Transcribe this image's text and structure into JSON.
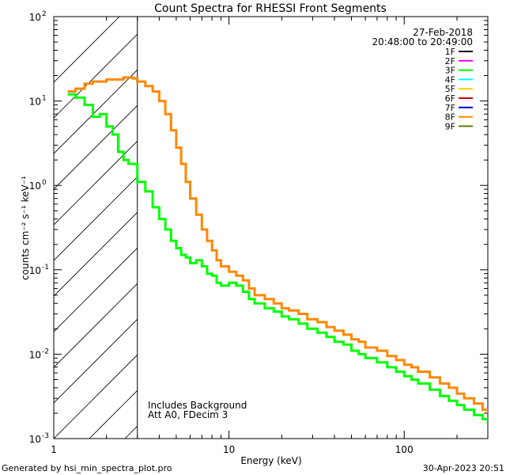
{
  "chart_data": {
    "type": "line",
    "title": "Count Spectra for RHESSI Front Segments",
    "xlabel": "Energy (keV)",
    "ylabel": "counts cm⁻² s⁻¹ keV⁻¹",
    "x_scale": "log",
    "y_scale": "log",
    "xlim": [
      1,
      300
    ],
    "ylim": [
      0.001,
      100
    ],
    "x_ticks": [
      {
        "value": 1,
        "label": "1"
      },
      {
        "value": 10,
        "label": "10"
      },
      {
        "value": 100,
        "label": "100"
      }
    ],
    "y_ticks": [
      {
        "value": 0.001,
        "base": "10",
        "exp": "-3"
      },
      {
        "value": 0.01,
        "base": "10",
        "exp": "-2"
      },
      {
        "value": 0.1,
        "base": "10",
        "exp": "-1"
      },
      {
        "value": 1,
        "base": "10",
        "exp": "0"
      },
      {
        "value": 10,
        "base": "10",
        "exp": "1"
      },
      {
        "value": 100,
        "base": "10",
        "exp": "2"
      }
    ],
    "date": "27-Feb-2018",
    "time_range": "20:48:00 to 20:49:00",
    "shaded_region_below_kev": 3,
    "annotations": [
      "Includes Background",
      "Att A0, FDecim 3"
    ],
    "legend": [
      {
        "label": "1F",
        "color": "#000000"
      },
      {
        "label": "2F",
        "color": "#ff00ff"
      },
      {
        "label": "3F",
        "color": "#00ff00"
      },
      {
        "label": "4F",
        "color": "#00ffff"
      },
      {
        "label": "5F",
        "color": "#ffcc00"
      },
      {
        "label": "6F",
        "color": "#cc0000"
      },
      {
        "label": "7F",
        "color": "#0000cc"
      },
      {
        "label": "8F",
        "color": "#ff8800"
      },
      {
        "label": "9F",
        "color": "#667700"
      }
    ],
    "series": [
      {
        "name": "3F",
        "color": "#00ff00",
        "points": [
          [
            1.2,
            12
          ],
          [
            1.33,
            11
          ],
          [
            1.5,
            9
          ],
          [
            1.67,
            6.5
          ],
          [
            1.83,
            7
          ],
          [
            2.0,
            5
          ],
          [
            2.17,
            4
          ],
          [
            2.33,
            2.5
          ],
          [
            2.5,
            2
          ],
          [
            2.67,
            1.8
          ],
          [
            2.83,
            1.8
          ],
          [
            3.0,
            1.1
          ],
          [
            3.33,
            0.85
          ],
          [
            3.67,
            0.55
          ],
          [
            4.0,
            0.4
          ],
          [
            4.33,
            0.3
          ],
          [
            4.67,
            0.22
          ],
          [
            5.0,
            0.18
          ],
          [
            5.33,
            0.15
          ],
          [
            5.67,
            0.14
          ],
          [
            6.0,
            0.12
          ],
          [
            6.5,
            0.13
          ],
          [
            7.0,
            0.11
          ],
          [
            7.5,
            0.09
          ],
          [
            8.0,
            0.085
          ],
          [
            8.5,
            0.07
          ],
          [
            9.0,
            0.065
          ],
          [
            10.0,
            0.07
          ],
          [
            11,
            0.065
          ],
          [
            12,
            0.055
          ],
          [
            13,
            0.045
          ],
          [
            14,
            0.04
          ],
          [
            16,
            0.035
          ],
          [
            18,
            0.032
          ],
          [
            20,
            0.028
          ],
          [
            22,
            0.026
          ],
          [
            25,
            0.023
          ],
          [
            28,
            0.02
          ],
          [
            32,
            0.018
          ],
          [
            36,
            0.016
          ],
          [
            40,
            0.014
          ],
          [
            45,
            0.013
          ],
          [
            50,
            0.011
          ],
          [
            55,
            0.01
          ],
          [
            60,
            0.009
          ],
          [
            70,
            0.008
          ],
          [
            80,
            0.007
          ],
          [
            90,
            0.0062
          ],
          [
            100,
            0.0055
          ],
          [
            110,
            0.005
          ],
          [
            120,
            0.0045
          ],
          [
            140,
            0.0038
          ],
          [
            160,
            0.0032
          ],
          [
            180,
            0.0028
          ],
          [
            200,
            0.0025
          ],
          [
            220,
            0.0022
          ],
          [
            250,
            0.0019
          ],
          [
            280,
            0.0017
          ],
          [
            300,
            0.0015
          ]
        ]
      },
      {
        "name": "8F",
        "color": "#ff8800",
        "points": [
          [
            1.2,
            13
          ],
          [
            1.33,
            14
          ],
          [
            1.5,
            16
          ],
          [
            1.67,
            17
          ],
          [
            1.83,
            17
          ],
          [
            2.0,
            18
          ],
          [
            2.17,
            18
          ],
          [
            2.33,
            18
          ],
          [
            2.5,
            19
          ],
          [
            2.67,
            19
          ],
          [
            2.83,
            18.5
          ],
          [
            3.0,
            17
          ],
          [
            3.33,
            15
          ],
          [
            3.67,
            13
          ],
          [
            4.0,
            10
          ],
          [
            4.33,
            7
          ],
          [
            4.67,
            4.5
          ],
          [
            5.0,
            2.8
          ],
          [
            5.33,
            1.8
          ],
          [
            5.67,
            1.1
          ],
          [
            6.0,
            0.7
          ],
          [
            6.5,
            0.45
          ],
          [
            7.0,
            0.3
          ],
          [
            7.5,
            0.22
          ],
          [
            8.0,
            0.17
          ],
          [
            8.5,
            0.13
          ],
          [
            9.0,
            0.11
          ],
          [
            10.0,
            0.095
          ],
          [
            11,
            0.085
          ],
          [
            12,
            0.075
          ],
          [
            13,
            0.06
          ],
          [
            14,
            0.05
          ],
          [
            16,
            0.045
          ],
          [
            18,
            0.04
          ],
          [
            20,
            0.035
          ],
          [
            22,
            0.033
          ],
          [
            25,
            0.03
          ],
          [
            28,
            0.026
          ],
          [
            32,
            0.024
          ],
          [
            36,
            0.021
          ],
          [
            40,
            0.019
          ],
          [
            45,
            0.017
          ],
          [
            50,
            0.015
          ],
          [
            55,
            0.014
          ],
          [
            60,
            0.012
          ],
          [
            70,
            0.011
          ],
          [
            80,
            0.0095
          ],
          [
            90,
            0.0085
          ],
          [
            100,
            0.0075
          ],
          [
            110,
            0.007
          ],
          [
            120,
            0.0062
          ],
          [
            140,
            0.0053
          ],
          [
            160,
            0.0045
          ],
          [
            180,
            0.004
          ],
          [
            200,
            0.0034
          ],
          [
            220,
            0.003
          ],
          [
            250,
            0.0026
          ],
          [
            280,
            0.0022
          ],
          [
            300,
            0.002
          ]
        ]
      }
    ]
  },
  "footer": {
    "generated_by": "Generated by hsi_min_spectra_plot.pro",
    "date": "30-Apr-2023 20:51"
  }
}
